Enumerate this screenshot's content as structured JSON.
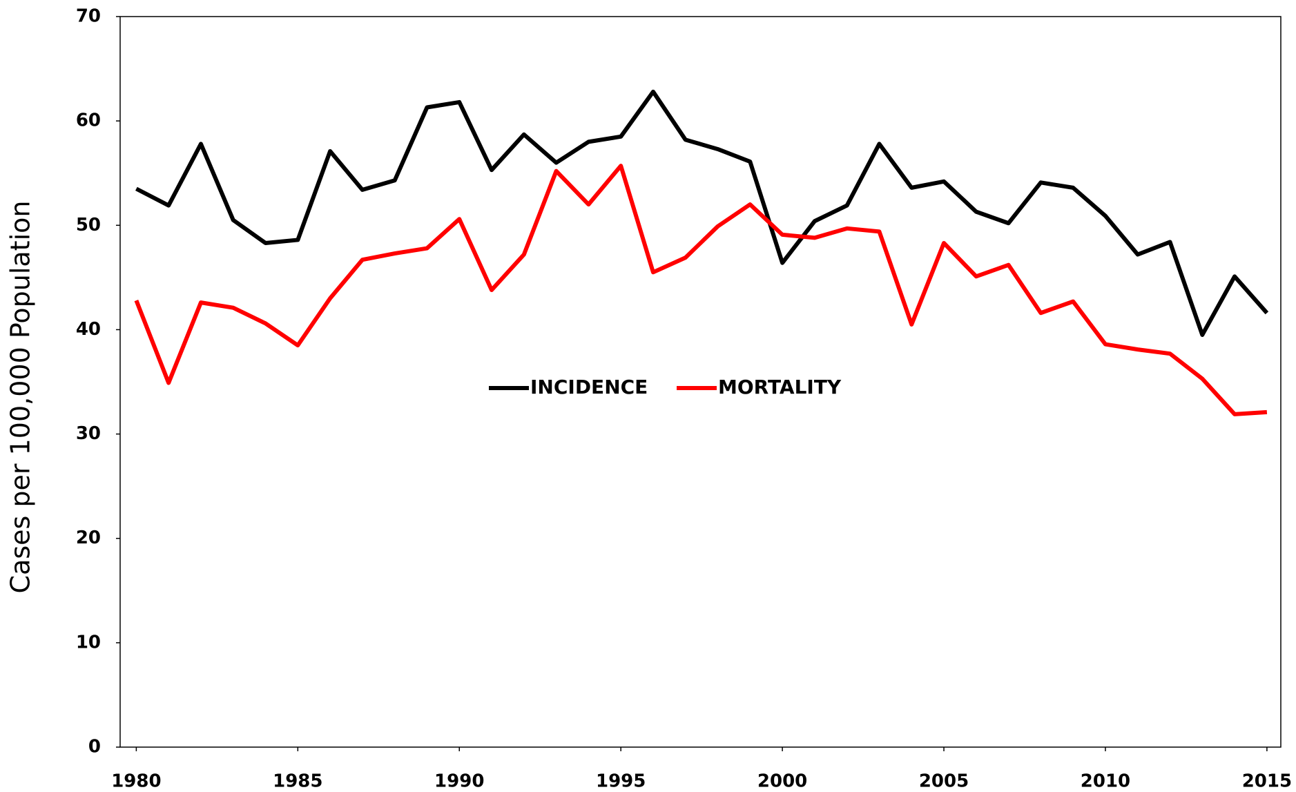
{
  "chart_data": {
    "type": "line",
    "y_label": "Cases per 100,000 Population",
    "x": [
      1980,
      1981,
      1982,
      1983,
      1984,
      1985,
      1986,
      1987,
      1988,
      1989,
      1990,
      1991,
      1992,
      1993,
      1994,
      1995,
      1996,
      1997,
      1998,
      1999,
      2000,
      2001,
      2002,
      2003,
      2004,
      2005,
      2006,
      2007,
      2008,
      2009,
      2010,
      2011,
      2012,
      2013,
      2014,
      2015
    ],
    "series": [
      {
        "name": "INCIDENCE",
        "color": "#000000",
        "values": [
          53.5,
          51.9,
          57.8,
          50.5,
          48.3,
          48.6,
          57.1,
          53.4,
          54.3,
          61.3,
          61.8,
          55.3,
          58.7,
          56.0,
          58.0,
          58.5,
          62.8,
          58.2,
          57.3,
          56.1,
          46.4,
          50.4,
          51.9,
          57.8,
          53.6,
          54.2,
          51.3,
          50.2,
          54.1,
          53.6,
          50.9,
          47.2,
          48.4,
          39.5,
          45.1,
          41.6
        ]
      },
      {
        "name": "MORTALITY",
        "color": "#ff0000",
        "values": [
          42.8,
          34.9,
          42.6,
          42.1,
          40.6,
          38.5,
          43.0,
          46.7,
          47.3,
          47.8,
          50.6,
          43.8,
          47.2,
          55.2,
          52.0,
          55.7,
          45.5,
          46.9,
          49.9,
          52.0,
          49.1,
          48.8,
          49.7,
          49.4,
          40.5,
          48.3,
          45.1,
          46.2,
          41.6,
          42.7,
          38.6,
          38.1,
          37.7,
          35.3,
          31.9,
          32.1
        ]
      }
    ],
    "xlim": [
      1979.5,
      2015.43
    ],
    "xticks": [
      1980,
      1985,
      1990,
      1995,
      2000,
      2005,
      2010,
      2015
    ],
    "ylim": [
      0,
      70
    ],
    "yticks": [
      0,
      10,
      20,
      30,
      40,
      50,
      60,
      70
    ],
    "legend": "center"
  }
}
